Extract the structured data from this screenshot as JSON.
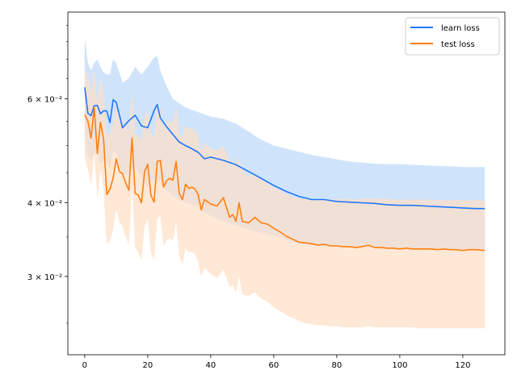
{
  "chart_data": {
    "type": "line",
    "title": "",
    "xlabel": "",
    "ylabel": "",
    "yscale": "log",
    "xlim": [
      -5.35,
      133.35
    ],
    "ylim": [
      0.0221,
      0.0842
    ],
    "xticks": [
      0,
      20,
      40,
      60,
      80,
      100,
      120
    ],
    "xtick_labels": [
      "0",
      "20",
      "40",
      "60",
      "80",
      "100",
      "120"
    ],
    "yticks": [
      0.03,
      0.04,
      0.06
    ],
    "ytick_labels": [
      "3 × 10⁻²",
      "4 × 10⁻²",
      "6 × 10⁻²"
    ],
    "grid": false,
    "legend_position": "upper right",
    "series": [
      {
        "name": "learn loss",
        "color": "#1f77ff",
        "band_color": "#cfe4fb",
        "x": [
          0,
          1,
          2,
          3,
          4,
          5,
          6,
          7,
          8,
          9,
          10,
          12,
          14,
          16,
          18,
          20,
          22,
          23,
          24,
          26,
          28,
          30,
          32,
          34,
          36,
          38,
          40,
          44,
          48,
          52,
          56,
          60,
          64,
          68,
          72,
          76,
          80,
          84,
          88,
          92,
          96,
          100,
          104,
          108,
          112,
          116,
          120,
          124,
          127
        ],
        "values": [
          0.0628,
          0.0567,
          0.0562,
          0.0584,
          0.0585,
          0.0566,
          0.0573,
          0.0572,
          0.0547,
          0.0598,
          0.0592,
          0.0536,
          0.0551,
          0.0563,
          0.054,
          0.0536,
          0.0573,
          0.0587,
          0.0557,
          0.0538,
          0.0522,
          0.0507,
          0.05,
          0.0494,
          0.0487,
          0.0475,
          0.0478,
          0.0472,
          0.0464,
          0.0452,
          0.044,
          0.0428,
          0.0418,
          0.041,
          0.0405,
          0.0405,
          0.0402,
          0.0401,
          0.04,
          0.0399,
          0.0397,
          0.0396,
          0.0396,
          0.0395,
          0.0394,
          0.0393,
          0.0392,
          0.0391,
          0.0391
        ],
        "upper": [
          0.076,
          0.069,
          0.067,
          0.069,
          0.07,
          0.068,
          0.0665,
          0.066,
          0.066,
          0.07,
          0.069,
          0.064,
          0.065,
          0.068,
          0.066,
          0.068,
          0.0705,
          0.071,
          0.067,
          0.063,
          0.06,
          0.059,
          0.058,
          0.0575,
          0.057,
          0.0565,
          0.056,
          0.0555,
          0.0545,
          0.0528,
          0.0512,
          0.05,
          0.0494,
          0.0488,
          0.0482,
          0.0478,
          0.0474,
          0.047,
          0.0468,
          0.0466,
          0.0465,
          0.0465,
          0.0464,
          0.0463,
          0.0462,
          0.0461,
          0.046,
          0.046,
          0.046
        ],
        "lower": [
          0.052,
          0.048,
          0.047,
          0.0485,
          0.0485,
          0.0465,
          0.047,
          0.047,
          0.0455,
          0.049,
          0.0485,
          0.0445,
          0.045,
          0.046,
          0.044,
          0.0425,
          0.044,
          0.044,
          0.043,
          0.042,
          0.041,
          0.0405,
          0.04,
          0.0398,
          0.0392,
          0.0386,
          0.038,
          0.0372,
          0.0366,
          0.036,
          0.0356,
          0.0352,
          0.0346,
          0.034,
          0.0339,
          0.0338,
          0.0338,
          0.0337,
          0.0336,
          0.0336,
          0.0335,
          0.0335,
          0.0334,
          0.0334,
          0.0333,
          0.0333,
          0.0333,
          0.0333,
          0.0333
        ]
      },
      {
        "name": "test loss",
        "color": "#ff7f0e",
        "band_color": "#ffdec4",
        "x": [
          0,
          1,
          2,
          3,
          4,
          5,
          6,
          7,
          8,
          9,
          10,
          11,
          12,
          13,
          14,
          15,
          16,
          17,
          18,
          19,
          20,
          21,
          22,
          23,
          24,
          25,
          26,
          27,
          28,
          29,
          30,
          31,
          32,
          33,
          34,
          35,
          36,
          37,
          38,
          40,
          42,
          44,
          46,
          47,
          48,
          49,
          50,
          52,
          54,
          56,
          58,
          60,
          62,
          64,
          66,
          68,
          70,
          72,
          74,
          76,
          78,
          80,
          82,
          84,
          86,
          88,
          90,
          92,
          94,
          96,
          98,
          100,
          102,
          104,
          106,
          108,
          110,
          112,
          114,
          116,
          118,
          120,
          122,
          124,
          127
        ],
        "values": [
          0.0564,
          0.055,
          0.0515,
          0.058,
          0.0485,
          0.0548,
          0.0512,
          0.0413,
          0.0422,
          0.044,
          0.0475,
          0.0452,
          0.0448,
          0.0432,
          0.042,
          0.0515,
          0.0415,
          0.0412,
          0.04,
          0.0452,
          0.0465,
          0.0412,
          0.0401,
          0.047,
          0.0472,
          0.0425,
          0.0436,
          0.044,
          0.0437,
          0.047,
          0.0415,
          0.0405,
          0.043,
          0.0423,
          0.0425,
          0.0422,
          0.0413,
          0.0389,
          0.0405,
          0.0398,
          0.0395,
          0.0408,
          0.0378,
          0.0382,
          0.0372,
          0.04,
          0.0372,
          0.037,
          0.0378,
          0.037,
          0.0368,
          0.0362,
          0.0357,
          0.0351,
          0.0347,
          0.0343,
          0.0342,
          0.0341,
          0.0339,
          0.034,
          0.0338,
          0.0338,
          0.0337,
          0.0337,
          0.0336,
          0.0337,
          0.0339,
          0.0336,
          0.0336,
          0.0335,
          0.0335,
          0.0334,
          0.0335,
          0.0334,
          0.0334,
          0.0334,
          0.0334,
          0.0333,
          0.0334,
          0.0333,
          0.0333,
          0.0332,
          0.0333,
          0.0333,
          0.0332
        ],
        "upper": [
          0.067,
          0.066,
          0.0615,
          0.068,
          0.059,
          0.065,
          0.0615,
          0.052,
          0.0525,
          0.0545,
          0.058,
          0.056,
          0.0555,
          0.054,
          0.053,
          0.062,
          0.0525,
          0.052,
          0.051,
          0.056,
          0.0575,
          0.0525,
          0.0515,
          0.058,
          0.058,
          0.0535,
          0.0545,
          0.055,
          0.0548,
          0.058,
          0.0525,
          0.0515,
          0.054,
          0.0535,
          0.0535,
          0.053,
          0.052,
          0.049,
          0.0505,
          0.0495,
          0.049,
          0.05,
          0.047,
          0.0472,
          0.046,
          0.048,
          0.0452,
          0.0445,
          0.0445,
          0.0438,
          0.0432,
          0.0425,
          0.042,
          0.0414,
          0.041,
          0.0407,
          0.0406,
          0.0405,
          0.0405,
          0.0405,
          0.0405,
          0.0406,
          0.0405,
          0.0406,
          0.0405,
          0.0406,
          0.0407,
          0.0406,
          0.0406,
          0.0406,
          0.0405,
          0.0405,
          0.0405,
          0.0405,
          0.0405,
          0.0405,
          0.0405,
          0.0404,
          0.0404,
          0.0404,
          0.0404,
          0.0404,
          0.0404,
          0.0404,
          0.0404
        ],
        "lower": [
          0.048,
          0.0455,
          0.043,
          0.0485,
          0.0405,
          0.0455,
          0.042,
          0.034,
          0.0345,
          0.036,
          0.039,
          0.037,
          0.0365,
          0.035,
          0.034,
          0.0425,
          0.0335,
          0.033,
          0.032,
          0.0365,
          0.0375,
          0.033,
          0.032,
          0.0375,
          0.038,
          0.0338,
          0.0345,
          0.0348,
          0.0345,
          0.0372,
          0.0325,
          0.0315,
          0.0335,
          0.033,
          0.033,
          0.0328,
          0.0318,
          0.03,
          0.031,
          0.0303,
          0.0298,
          0.0308,
          0.0288,
          0.029,
          0.0282,
          0.03,
          0.028,
          0.0278,
          0.0282,
          0.0275,
          0.0272,
          0.0266,
          0.0262,
          0.0258,
          0.0255,
          0.0252,
          0.025,
          0.0249,
          0.0248,
          0.0248,
          0.0247,
          0.0247,
          0.0246,
          0.0246,
          0.0246,
          0.0246,
          0.0247,
          0.0246,
          0.0246,
          0.0246,
          0.0246,
          0.0246,
          0.0246,
          0.0246,
          0.0245,
          0.0245,
          0.0245,
          0.0245,
          0.0245,
          0.0245,
          0.0245,
          0.0245,
          0.0245,
          0.0245,
          0.0245
        ]
      }
    ]
  }
}
